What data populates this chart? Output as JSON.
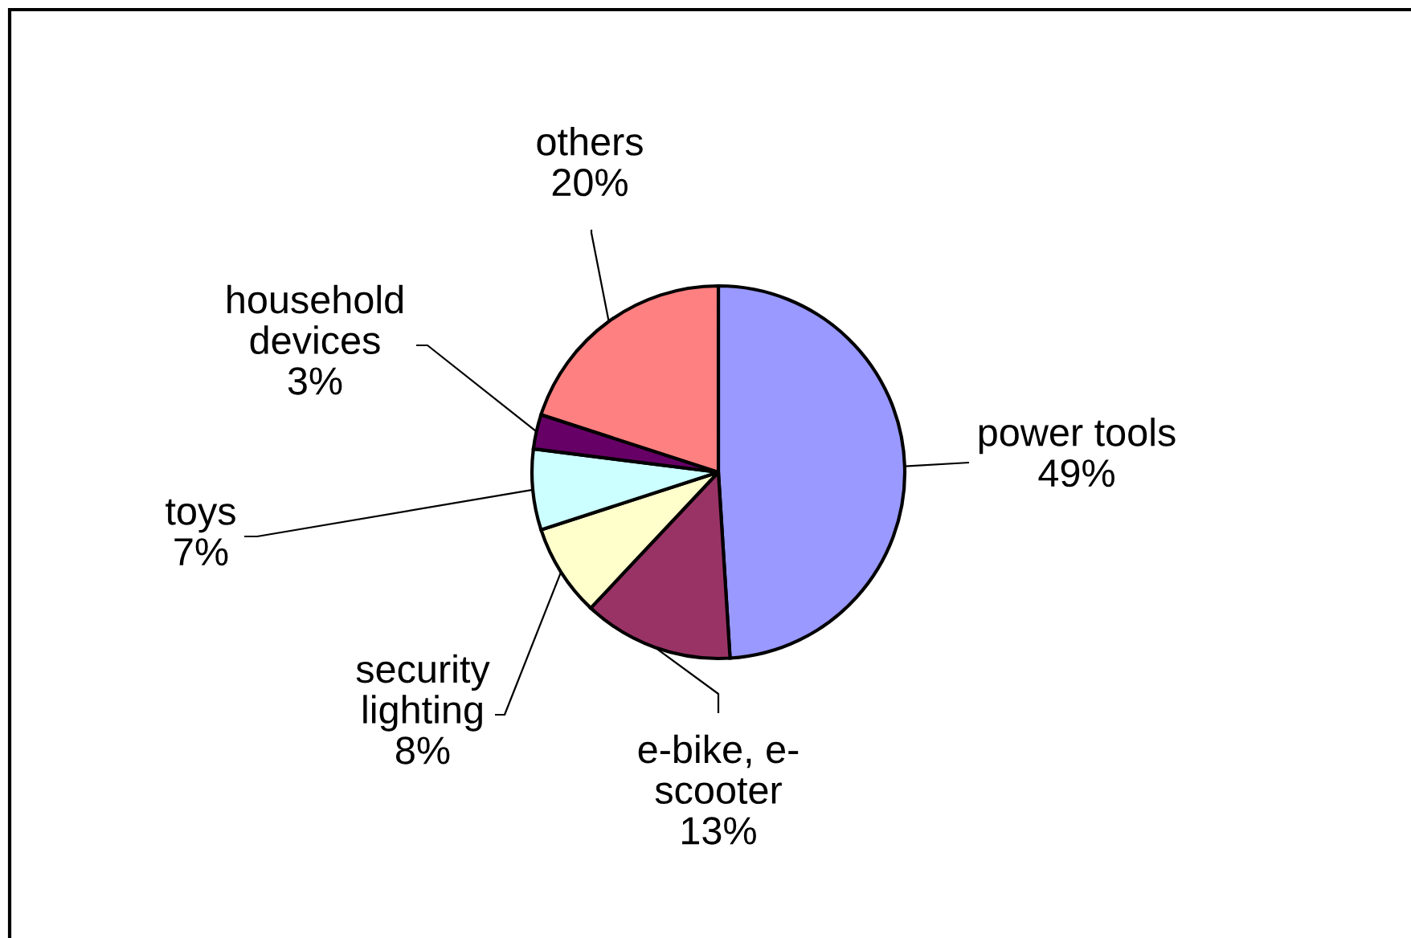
{
  "chart_data": {
    "type": "pie",
    "categories": [
      "power tools",
      "e-bike, e-\nscooter",
      "security\nlighting",
      "toys",
      "household\ndevices",
      "others"
    ],
    "values": [
      49,
      13,
      8,
      7,
      3,
      20
    ],
    "value_labels": [
      "49%",
      "13%",
      "8%",
      "7%",
      "3%",
      "20%"
    ],
    "colors": [
      "#9999ff",
      "#993366",
      "#ffffcc",
      "#ccffff",
      "#660066",
      "#ff8080"
    ]
  }
}
